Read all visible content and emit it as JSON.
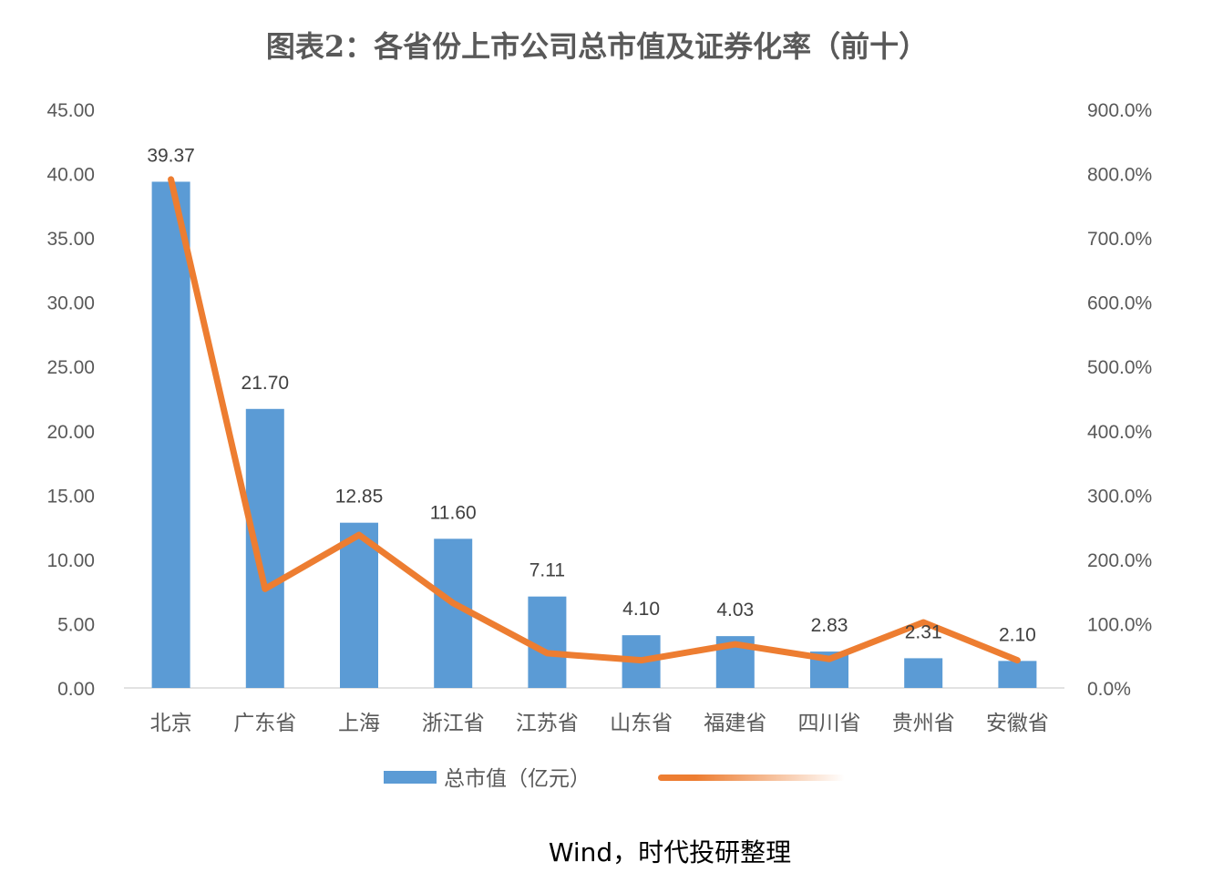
{
  "chart_data": {
    "type": "bar",
    "title": "图表2：各省份上市公司总市值及证券化率（前十）",
    "categories": [
      "北京",
      "广东省",
      "上海",
      "浙江省",
      "江苏省",
      "山东省",
      "福建省",
      "四川省",
      "贵州省",
      "安徽省"
    ],
    "series": [
      {
        "name": "总市值（亿元）",
        "type": "bar",
        "axis": "left",
        "color": "#5B9BD5",
        "values": [
          39.37,
          21.7,
          12.85,
          11.6,
          7.11,
          4.1,
          4.03,
          2.83,
          2.31,
          2.1
        ],
        "labels": [
          "39.37",
          "21.70",
          "12.85",
          "11.60",
          "7.11",
          "4.10",
          "4.03",
          "2.83",
          "2.31",
          "2.10"
        ]
      },
      {
        "type": "line",
        "axis": "right",
        "color": "#ED7D31",
        "values": [
          791,
          154,
          238,
          132,
          54,
          43,
          68,
          45,
          102,
          43
        ]
      }
    ],
    "y_left": {
      "range": [
        0,
        45
      ],
      "ticks": [
        "0.00",
        "5.00",
        "10.00",
        "15.00",
        "20.00",
        "25.00",
        "30.00",
        "35.00",
        "40.00",
        "45.00"
      ]
    },
    "y_right": {
      "range": [
        0,
        900
      ],
      "unit": "%",
      "ticks": [
        "0.0%",
        "100.0%",
        "200.0%",
        "300.0%",
        "400.0%",
        "500.0%",
        "600.0%",
        "700.0%",
        "800.0%",
        "900.0%"
      ]
    },
    "grid": false,
    "legend": "bottom",
    "source": "Wind，时代投研整理"
  }
}
